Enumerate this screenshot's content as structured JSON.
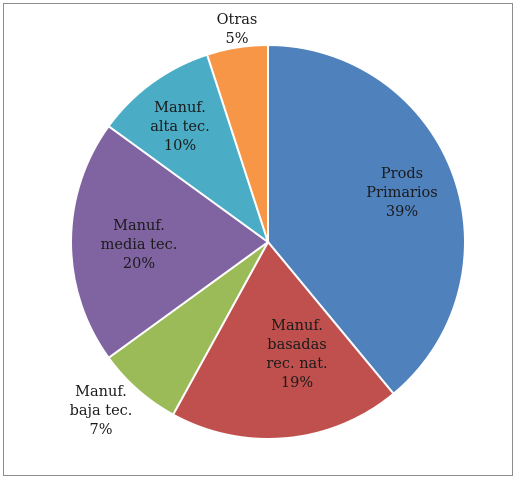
{
  "chart_data": {
    "type": "pie",
    "title": "",
    "start_angle_deg": 0,
    "direction": "clockwise",
    "legend": "none",
    "slices": [
      {
        "lines": [
          "Prods",
          "Primarios",
          "39%"
        ],
        "value": 39,
        "color": "#4f81bd"
      },
      {
        "lines": [
          "Manuf.",
          "basadas",
          "rec. nat.",
          "19%"
        ],
        "value": 19,
        "color": "#c0504d"
      },
      {
        "lines": [
          "Manuf.",
          "baja tec.",
          "7%"
        ],
        "value": 7,
        "color": "#9bbb59"
      },
      {
        "lines": [
          "Manuf.",
          "media tec.",
          "20%"
        ],
        "value": 20,
        "color": "#8064a2"
      },
      {
        "lines": [
          "Manuf.",
          "alta tec.",
          "10%"
        ],
        "value": 10,
        "color": "#4bacc6"
      },
      {
        "lines": [
          "Otras",
          "5%"
        ],
        "value": 5,
        "color": "#f79646"
      }
    ]
  }
}
